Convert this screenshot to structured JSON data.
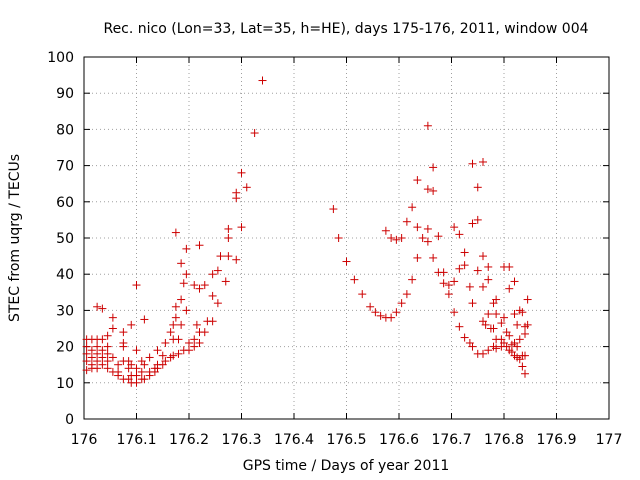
{
  "chart_data": {
    "type": "scatter",
    "title": "Rec. nico (Lon=33, Lat=35, h=HE), days 175-176, 2011, window 004",
    "xlabel": "GPS time / Days of year 2011",
    "ylabel": "STEC from uqrg / TECUs",
    "xlim": [
      176,
      177
    ],
    "ylim": [
      0,
      100
    ],
    "xticks": [
      176,
      176.1,
      176.2,
      176.3,
      176.4,
      176.5,
      176.6,
      176.7,
      176.8,
      176.9,
      177
    ],
    "xtick_labels": [
      "176",
      "176.1",
      "176.2",
      "176.3",
      "176.4",
      "176.5",
      "176.6",
      "176.7",
      "176.8",
      "176.9",
      "177"
    ],
    "yticks": [
      0,
      10,
      20,
      30,
      40,
      50,
      60,
      70,
      80,
      90,
      100
    ],
    "ytick_labels": [
      "0",
      "10",
      "20",
      "30",
      "40",
      "50",
      "60",
      "70",
      "80",
      "90",
      "100"
    ],
    "grid": true,
    "marker": "plus",
    "color": "#cc0000",
    "series": [
      {
        "points": [
          [
            176.005,
            22
          ],
          [
            176.005,
            20
          ],
          [
            176.005,
            18
          ],
          [
            176.005,
            16
          ],
          [
            176.005,
            13.5
          ],
          [
            176.015,
            22
          ],
          [
            176.015,
            19
          ],
          [
            176.015,
            17
          ],
          [
            176.015,
            15
          ],
          [
            176.015,
            14
          ],
          [
            176.025,
            31
          ],
          [
            176.025,
            22
          ],
          [
            176.025,
            20
          ],
          [
            176.025,
            18
          ],
          [
            176.025,
            16
          ],
          [
            176.025,
            14
          ],
          [
            176.035,
            30.5
          ],
          [
            176.035,
            22
          ],
          [
            176.035,
            19
          ],
          [
            176.035,
            17
          ],
          [
            176.035,
            15
          ],
          [
            176.045,
            23
          ],
          [
            176.045,
            20
          ],
          [
            176.045,
            18
          ],
          [
            176.045,
            16
          ],
          [
            176.045,
            14
          ],
          [
            176.055,
            28
          ],
          [
            176.055,
            25
          ],
          [
            176.055,
            17
          ],
          [
            176.055,
            13
          ],
          [
            176.065,
            15
          ],
          [
            176.065,
            13
          ],
          [
            176.065,
            12
          ],
          [
            176.075,
            24
          ],
          [
            176.075,
            21
          ],
          [
            176.075,
            20
          ],
          [
            176.075,
            16
          ],
          [
            176.075,
            11
          ],
          [
            176.085,
            16
          ],
          [
            176.085,
            14
          ],
          [
            176.085,
            11
          ],
          [
            176.09,
            26
          ],
          [
            176.09,
            15
          ],
          [
            176.09,
            12
          ],
          [
            176.09,
            10
          ],
          [
            176.1,
            37
          ],
          [
            176.1,
            19
          ],
          [
            176.1,
            14
          ],
          [
            176.1,
            12
          ],
          [
            176.1,
            10
          ],
          [
            176.11,
            16
          ],
          [
            176.11,
            13
          ],
          [
            176.11,
            11
          ],
          [
            176.115,
            27.5
          ],
          [
            176.115,
            15
          ],
          [
            176.115,
            11
          ],
          [
            176.125,
            17
          ],
          [
            176.125,
            13
          ],
          [
            176.125,
            12
          ],
          [
            176.135,
            14
          ],
          [
            176.135,
            13
          ],
          [
            176.14,
            19
          ],
          [
            176.14,
            15
          ],
          [
            176.14,
            14
          ],
          [
            176.15,
            17.5
          ],
          [
            176.15,
            15
          ],
          [
            176.155,
            21
          ],
          [
            176.155,
            16
          ],
          [
            176.165,
            24
          ],
          [
            176.165,
            17
          ],
          [
            176.17,
            26
          ],
          [
            176.17,
            22
          ],
          [
            176.17,
            17.5
          ],
          [
            176.175,
            51.5
          ],
          [
            176.175,
            31
          ],
          [
            176.175,
            28
          ],
          [
            176.18,
            22
          ],
          [
            176.18,
            18
          ],
          [
            176.185,
            43
          ],
          [
            176.185,
            33
          ],
          [
            176.185,
            26
          ],
          [
            176.19,
            37.5
          ],
          [
            176.19,
            19
          ],
          [
            176.195,
            47
          ],
          [
            176.195,
            40
          ],
          [
            176.195,
            30
          ],
          [
            176.2,
            21
          ],
          [
            176.2,
            19
          ],
          [
            176.21,
            37
          ],
          [
            176.21,
            22
          ],
          [
            176.21,
            20
          ],
          [
            176.215,
            26
          ],
          [
            176.22,
            48
          ],
          [
            176.22,
            36
          ],
          [
            176.22,
            24
          ],
          [
            176.22,
            21
          ],
          [
            176.23,
            37
          ],
          [
            176.23,
            24
          ],
          [
            176.235,
            27
          ],
          [
            176.245,
            40
          ],
          [
            176.245,
            34
          ],
          [
            176.245,
            27
          ],
          [
            176.255,
            41
          ],
          [
            176.255,
            32
          ],
          [
            176.26,
            45
          ],
          [
            176.27,
            38
          ],
          [
            176.275,
            52.5
          ],
          [
            176.275,
            50
          ],
          [
            176.275,
            45
          ],
          [
            176.29,
            62.5
          ],
          [
            176.29,
            61
          ],
          [
            176.29,
            44
          ],
          [
            176.3,
            68
          ],
          [
            176.3,
            53
          ],
          [
            176.31,
            64
          ],
          [
            176.325,
            79
          ],
          [
            176.34,
            93.5
          ],
          [
            176.475,
            58
          ],
          [
            176.485,
            50
          ],
          [
            176.5,
            43.5
          ],
          [
            176.515,
            38.5
          ],
          [
            176.53,
            34.5
          ],
          [
            176.545,
            31
          ],
          [
            176.555,
            29.5
          ],
          [
            176.565,
            28.5
          ],
          [
            176.575,
            52
          ],
          [
            176.575,
            28
          ],
          [
            176.585,
            50
          ],
          [
            176.585,
            28
          ],
          [
            176.595,
            49.5
          ],
          [
            176.595,
            29.5
          ],
          [
            176.605,
            50
          ],
          [
            176.605,
            32
          ],
          [
            176.615,
            54.5
          ],
          [
            176.615,
            34.5
          ],
          [
            176.625,
            58.5
          ],
          [
            176.625,
            38.5
          ],
          [
            176.635,
            66
          ],
          [
            176.635,
            53
          ],
          [
            176.635,
            44.5
          ],
          [
            176.645,
            50
          ],
          [
            176.655,
            81
          ],
          [
            176.655,
            63.5
          ],
          [
            176.655,
            52.5
          ],
          [
            176.655,
            49
          ],
          [
            176.665,
            69.5
          ],
          [
            176.665,
            63
          ],
          [
            176.665,
            44.5
          ],
          [
            176.675,
            50.5
          ],
          [
            176.675,
            40.5
          ],
          [
            176.685,
            40.5
          ],
          [
            176.685,
            37.5
          ],
          [
            176.695,
            34.5
          ],
          [
            176.695,
            37
          ],
          [
            176.705,
            53
          ],
          [
            176.705,
            38
          ],
          [
            176.705,
            29.5
          ],
          [
            176.715,
            51
          ],
          [
            176.715,
            41.5
          ],
          [
            176.715,
            25.5
          ],
          [
            176.725,
            46
          ],
          [
            176.725,
            42.5
          ],
          [
            176.725,
            22.5
          ],
          [
            176.735,
            36.5
          ],
          [
            176.735,
            21
          ],
          [
            176.74,
            70.5
          ],
          [
            176.74,
            54
          ],
          [
            176.74,
            32
          ],
          [
            176.74,
            20
          ],
          [
            176.75,
            64
          ],
          [
            176.75,
            55
          ],
          [
            176.75,
            41
          ],
          [
            176.75,
            18
          ],
          [
            176.76,
            71
          ],
          [
            176.76,
            45
          ],
          [
            176.76,
            36.5
          ],
          [
            176.76,
            27
          ],
          [
            176.76,
            18
          ],
          [
            176.765,
            26
          ],
          [
            176.77,
            42
          ],
          [
            176.77,
            38.5
          ],
          [
            176.77,
            29
          ],
          [
            176.77,
            19
          ],
          [
            176.775,
            25
          ],
          [
            176.78,
            32
          ],
          [
            176.78,
            25
          ],
          [
            176.78,
            20
          ],
          [
            176.785,
            33
          ],
          [
            176.785,
            29
          ],
          [
            176.785,
            22
          ],
          [
            176.785,
            19.5
          ],
          [
            176.795,
            26.5
          ],
          [
            176.795,
            22
          ],
          [
            176.795,
            20
          ],
          [
            176.8,
            42
          ],
          [
            176.8,
            28
          ],
          [
            176.8,
            21
          ],
          [
            176.805,
            24
          ],
          [
            176.805,
            20
          ],
          [
            176.81,
            42
          ],
          [
            176.81,
            36
          ],
          [
            176.81,
            23
          ],
          [
            176.81,
            19
          ],
          [
            176.815,
            20.5
          ],
          [
            176.815,
            18.5
          ],
          [
            176.82,
            38
          ],
          [
            176.82,
            29
          ],
          [
            176.82,
            21
          ],
          [
            176.82,
            17.5
          ],
          [
            176.825,
            26
          ],
          [
            176.825,
            20
          ],
          [
            176.825,
            17
          ],
          [
            176.83,
            30
          ],
          [
            176.83,
            22
          ],
          [
            176.83,
            16.5
          ],
          [
            176.835,
            29.5
          ],
          [
            176.835,
            17.5
          ],
          [
            176.835,
            14.5
          ],
          [
            176.84,
            25.5
          ],
          [
            176.84,
            23.5
          ],
          [
            176.84,
            17.5
          ],
          [
            176.84,
            12.5
          ],
          [
            176.845,
            33
          ],
          [
            176.845,
            26
          ]
        ]
      }
    ]
  }
}
